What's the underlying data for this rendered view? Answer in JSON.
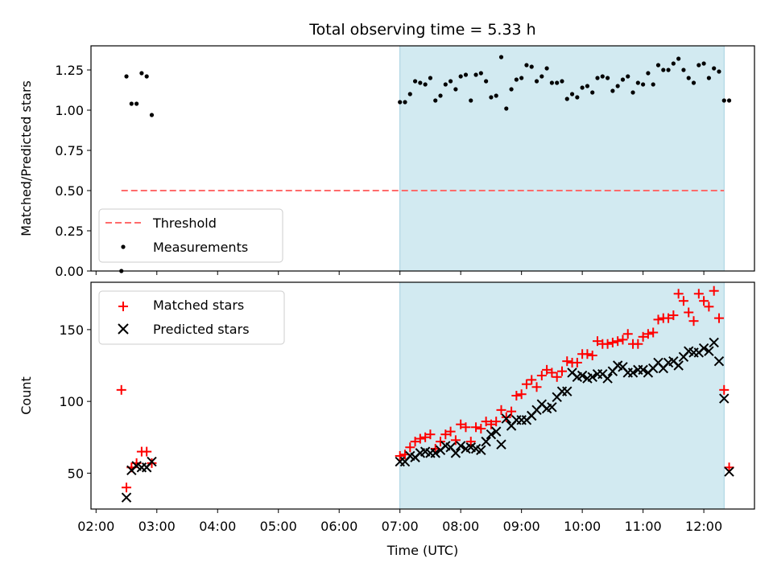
{
  "title": "Total observing time = 5.33 h",
  "xlabel": "Time (UTC)",
  "x_ticks": [
    "02:00",
    "03:00",
    "04:00",
    "05:00",
    "06:00",
    "07:00",
    "08:00",
    "09:00",
    "10:00",
    "11:00",
    "12:00"
  ],
  "colors": {
    "shade": "#add8e6",
    "threshold": "#ff6b6b",
    "matched": "#ff0000",
    "predicted": "#000000",
    "measure": "#000000"
  },
  "chart_data": [
    {
      "type": "scatter",
      "ylabel": "Matched/Predicted stars",
      "xlim": [
        "01:55",
        "12:50"
      ],
      "ylim": [
        0,
        1.4
      ],
      "y_ticks": [
        "0.00",
        "0.25",
        "0.50",
        "0.75",
        "1.00",
        "1.25"
      ],
      "shaded_interval": [
        "07:00",
        "12:20"
      ],
      "legend": {
        "position": "lower-left",
        "entries": [
          "Threshold",
          "Measurements"
        ]
      },
      "threshold": {
        "name": "Threshold",
        "y": 0.5,
        "x_range": [
          "02:25",
          "12:20"
        ]
      },
      "series": [
        {
          "name": "Measurements",
          "points": [
            [
              "02:25",
              0.0
            ],
            [
              "02:30",
              1.21
            ],
            [
              "02:35",
              1.04
            ],
            [
              "02:40",
              1.04
            ],
            [
              "02:45",
              1.23
            ],
            [
              "02:50",
              1.21
            ],
            [
              "02:55",
              0.97
            ],
            [
              "07:00",
              1.05
            ],
            [
              "07:05",
              1.05
            ],
            [
              "07:10",
              1.1
            ],
            [
              "07:15",
              1.18
            ],
            [
              "07:20",
              1.17
            ],
            [
              "07:25",
              1.16
            ],
            [
              "07:30",
              1.2
            ],
            [
              "07:35",
              1.06
            ],
            [
              "07:40",
              1.09
            ],
            [
              "07:45",
              1.16
            ],
            [
              "07:50",
              1.18
            ],
            [
              "07:55",
              1.13
            ],
            [
              "08:00",
              1.21
            ],
            [
              "08:05",
              1.22
            ],
            [
              "08:10",
              1.06
            ],
            [
              "08:15",
              1.22
            ],
            [
              "08:20",
              1.23
            ],
            [
              "08:25",
              1.18
            ],
            [
              "08:30",
              1.08
            ],
            [
              "08:35",
              1.09
            ],
            [
              "08:40",
              1.33
            ],
            [
              "08:45",
              1.01
            ],
            [
              "08:50",
              1.13
            ],
            [
              "08:55",
              1.19
            ],
            [
              "09:00",
              1.2
            ],
            [
              "09:05",
              1.28
            ],
            [
              "09:10",
              1.27
            ],
            [
              "09:15",
              1.18
            ],
            [
              "09:20",
              1.21
            ],
            [
              "09:25",
              1.26
            ],
            [
              "09:30",
              1.17
            ],
            [
              "09:35",
              1.17
            ],
            [
              "09:40",
              1.18
            ],
            [
              "09:45",
              1.07
            ],
            [
              "09:50",
              1.1
            ],
            [
              "09:55",
              1.08
            ],
            [
              "10:00",
              1.14
            ],
            [
              "10:05",
              1.15
            ],
            [
              "10:10",
              1.11
            ],
            [
              "10:15",
              1.2
            ],
            [
              "10:20",
              1.21
            ],
            [
              "10:25",
              1.2
            ],
            [
              "10:30",
              1.12
            ],
            [
              "10:35",
              1.15
            ],
            [
              "10:40",
              1.19
            ],
            [
              "10:45",
              1.21
            ],
            [
              "10:50",
              1.11
            ],
            [
              "10:55",
              1.17
            ],
            [
              "11:00",
              1.16
            ],
            [
              "11:05",
              1.23
            ],
            [
              "11:10",
              1.16
            ],
            [
              "11:15",
              1.28
            ],
            [
              "11:20",
              1.25
            ],
            [
              "11:25",
              1.25
            ],
            [
              "11:30",
              1.29
            ],
            [
              "11:35",
              1.32
            ],
            [
              "11:40",
              1.25
            ],
            [
              "11:45",
              1.2
            ],
            [
              "11:50",
              1.17
            ],
            [
              "11:55",
              1.28
            ],
            [
              "12:00",
              1.29
            ],
            [
              "12:05",
              1.2
            ],
            [
              "12:10",
              1.26
            ],
            [
              "12:15",
              1.24
            ],
            [
              "12:20",
              1.06
            ],
            [
              "12:25",
              1.06
            ]
          ]
        }
      ]
    },
    {
      "type": "scatter",
      "ylabel": "Count",
      "xlim": [
        "01:55",
        "12:50"
      ],
      "ylim": [
        25,
        183
      ],
      "y_ticks": [
        "50",
        "100",
        "150"
      ],
      "shaded_interval": [
        "07:00",
        "12:20"
      ],
      "legend": {
        "position": "top-left",
        "entries": [
          "Matched stars",
          "Predicted stars"
        ]
      },
      "series": [
        {
          "name": "Matched stars",
          "marker": "plus",
          "points": [
            [
              "02:25",
              108
            ],
            [
              "02:30",
              40
            ],
            [
              "02:35",
              54
            ],
            [
              "02:40",
              57
            ],
            [
              "02:45",
              65
            ],
            [
              "02:50",
              65
            ],
            [
              "02:55",
              57
            ],
            [
              "07:00",
              62
            ],
            [
              "07:05",
              63
            ],
            [
              "07:10",
              68
            ],
            [
              "07:15",
              72
            ],
            [
              "07:20",
              74
            ],
            [
              "07:25",
              75
            ],
            [
              "07:30",
              77
            ],
            [
              "07:35",
              67
            ],
            [
              "07:40",
              72
            ],
            [
              "07:45",
              77
            ],
            [
              "07:50",
              79
            ],
            [
              "07:55",
              73
            ],
            [
              "08:00",
              84
            ],
            [
              "08:05",
              82
            ],
            [
              "08:10",
              72
            ],
            [
              "08:15",
              82
            ],
            [
              "08:20",
              81
            ],
            [
              "08:25",
              86
            ],
            [
              "08:30",
              84
            ],
            [
              "08:35",
              86
            ],
            [
              "08:40",
              94
            ],
            [
              "08:45",
              89
            ],
            [
              "08:50",
              93
            ],
            [
              "08:55",
              104
            ],
            [
              "09:00",
              105
            ],
            [
              "09:05",
              112
            ],
            [
              "09:10",
              115
            ],
            [
              "09:15",
              110
            ],
            [
              "09:20",
              118
            ],
            [
              "09:25",
              122
            ],
            [
              "09:30",
              120
            ],
            [
              "09:35",
              117
            ],
            [
              "09:40",
              121
            ],
            [
              "09:45",
              128
            ],
            [
              "09:50",
              127
            ],
            [
              "09:55",
              127
            ],
            [
              "10:00",
              133
            ],
            [
              "10:05",
              133
            ],
            [
              "10:10",
              132
            ],
            [
              "10:15",
              142
            ],
            [
              "10:20",
              140
            ],
            [
              "10:25",
              140
            ],
            [
              "10:30",
              141
            ],
            [
              "10:35",
              142
            ],
            [
              "10:40",
              143
            ],
            [
              "10:45",
              147
            ],
            [
              "10:50",
              140
            ],
            [
              "10:55",
              140
            ],
            [
              "11:00",
              145
            ],
            [
              "11:05",
              147
            ],
            [
              "11:10",
              148
            ],
            [
              "11:15",
              157
            ],
            [
              "11:20",
              158
            ],
            [
              "11:25",
              158
            ],
            [
              "11:30",
              160
            ],
            [
              "11:35",
              175
            ],
            [
              "11:40",
              170
            ],
            [
              "11:45",
              162
            ],
            [
              "11:50",
              156
            ],
            [
              "11:55",
              175
            ],
            [
              "12:00",
              170
            ],
            [
              "12:05",
              166
            ],
            [
              "12:10",
              177
            ],
            [
              "12:15",
              158
            ],
            [
              "12:20",
              108
            ],
            [
              "12:25",
              54
            ]
          ]
        },
        {
          "name": "Predicted stars",
          "marker": "x",
          "points": [
            [
              "02:30",
              33
            ],
            [
              "02:35",
              52
            ],
            [
              "02:40",
              55
            ],
            [
              "02:45",
              54
            ],
            [
              "02:50",
              54
            ],
            [
              "02:55",
              58
            ],
            [
              "07:00",
              58
            ],
            [
              "07:05",
              58
            ],
            [
              "07:10",
              62
            ],
            [
              "07:15",
              61
            ],
            [
              "07:20",
              64
            ],
            [
              "07:25",
              65
            ],
            [
              "07:30",
              64
            ],
            [
              "07:35",
              64
            ],
            [
              "07:40",
              66
            ],
            [
              "07:45",
              69
            ],
            [
              "07:50",
              68
            ],
            [
              "07:55",
              64
            ],
            [
              "08:00",
              69
            ],
            [
              "08:05",
              67
            ],
            [
              "08:10",
              68
            ],
            [
              "08:15",
              67
            ],
            [
              "08:20",
              66
            ],
            [
              "08:25",
              72
            ],
            [
              "08:30",
              77
            ],
            [
              "08:35",
              79
            ],
            [
              "08:40",
              70
            ],
            [
              "08:45",
              88
            ],
            [
              "08:50",
              83
            ],
            [
              "08:55",
              87
            ],
            [
              "09:00",
              87
            ],
            [
              "09:05",
              87
            ],
            [
              "09:10",
              90
            ],
            [
              "09:15",
              94
            ],
            [
              "09:20",
              98
            ],
            [
              "09:25",
              95
            ],
            [
              "09:30",
              96
            ],
            [
              "09:35",
              103
            ],
            [
              "09:40",
              107
            ],
            [
              "09:45",
              107
            ],
            [
              "09:50",
              120
            ],
            [
              "09:55",
              117
            ],
            [
              "10:00",
              118
            ],
            [
              "10:05",
              116
            ],
            [
              "10:10",
              117
            ],
            [
              "10:15",
              119
            ],
            [
              "10:20",
              119
            ],
            [
              "10:25",
              116
            ],
            [
              "10:30",
              121
            ],
            [
              "10:35",
              125
            ],
            [
              "10:40",
              124
            ],
            [
              "10:45",
              120
            ],
            [
              "10:50",
              120
            ],
            [
              "10:55",
              122
            ],
            [
              "11:00",
              122
            ],
            [
              "11:05",
              120
            ],
            [
              "11:10",
              123
            ],
            [
              "11:15",
              127
            ],
            [
              "11:20",
              123
            ],
            [
              "11:25",
              127
            ],
            [
              "11:30",
              128
            ],
            [
              "11:35",
              125
            ],
            [
              "11:40",
              131
            ],
            [
              "11:45",
              135
            ],
            [
              "11:50",
              134
            ],
            [
              "11:55",
              134
            ],
            [
              "12:00",
              137
            ],
            [
              "12:05",
              135
            ],
            [
              "12:10",
              141
            ],
            [
              "12:15",
              128
            ],
            [
              "12:20",
              102
            ],
            [
              "12:25",
              51
            ]
          ]
        }
      ]
    }
  ]
}
